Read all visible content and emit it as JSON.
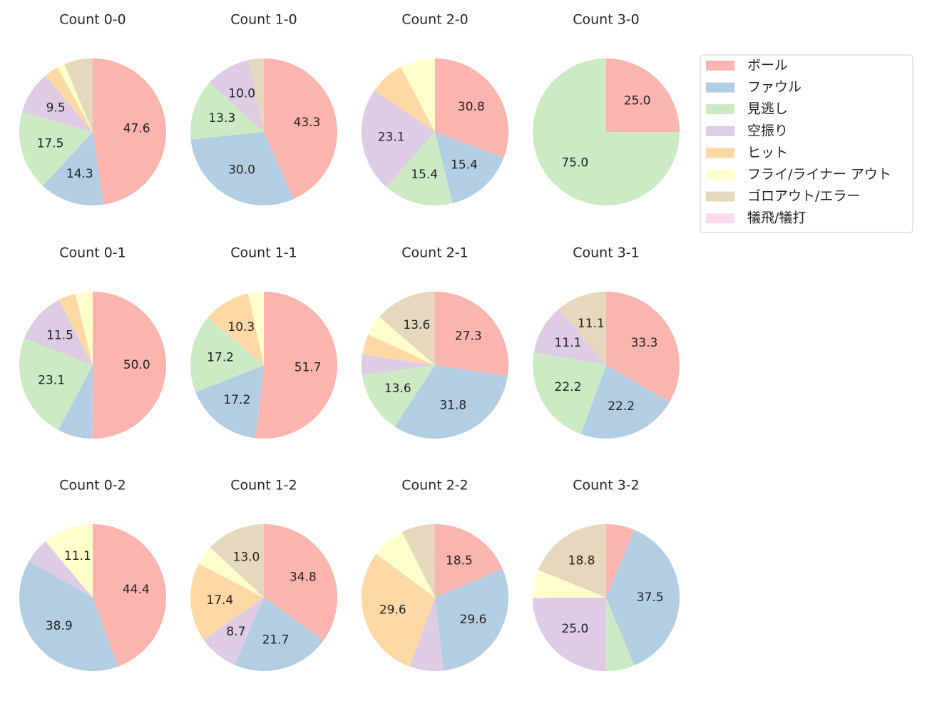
{
  "chart_data": [
    {
      "type": "pie",
      "title": "Count 0-0",
      "values": [
        47.6,
        14.3,
        17.5,
        9.5,
        3.2,
        1.6,
        6.3,
        0
      ],
      "value_labels": [
        "47.6",
        "14.3",
        "17.5",
        "9.5",
        null,
        null,
        null,
        null
      ]
    },
    {
      "type": "pie",
      "title": "Count 1-0",
      "values": [
        43.3,
        30.0,
        13.3,
        10.0,
        0,
        0,
        3.3,
        0
      ],
      "value_labels": [
        "43.3",
        "30.0",
        "13.3",
        "10.0",
        null,
        null,
        null,
        null
      ]
    },
    {
      "type": "pie",
      "title": "Count 2-0",
      "values": [
        30.8,
        15.4,
        15.4,
        23.1,
        7.7,
        7.7,
        0,
        0
      ],
      "value_labels": [
        "30.8",
        "15.4",
        "15.4",
        "23.1",
        null,
        null,
        null,
        null
      ]
    },
    {
      "type": "pie",
      "title": "Count 3-0",
      "values": [
        25.0,
        0,
        75.0,
        0,
        0,
        0,
        0,
        0
      ],
      "value_labels": [
        "25.0",
        null,
        "75.0",
        null,
        null,
        null,
        null,
        null
      ]
    },
    {
      "type": "pie",
      "title": "Count 0-1",
      "values": [
        50.0,
        7.7,
        23.1,
        11.5,
        3.8,
        3.8,
        0,
        0
      ],
      "value_labels": [
        "50.0",
        null,
        "23.1",
        "11.5",
        null,
        null,
        null,
        null
      ]
    },
    {
      "type": "pie",
      "title": "Count 1-1",
      "values": [
        51.7,
        17.2,
        17.2,
        0,
        10.3,
        3.4,
        0,
        0
      ],
      "value_labels": [
        "51.7",
        "17.2",
        "17.2",
        null,
        "10.3",
        null,
        null,
        null
      ]
    },
    {
      "type": "pie",
      "title": "Count 2-1",
      "values": [
        27.3,
        31.8,
        13.6,
        4.5,
        4.5,
        4.5,
        13.6,
        0
      ],
      "value_labels": [
        "27.3",
        "31.8",
        "13.6",
        null,
        null,
        null,
        "13.6",
        null
      ]
    },
    {
      "type": "pie",
      "title": "Count 3-1",
      "values": [
        33.3,
        22.2,
        22.2,
        11.1,
        0,
        0,
        11.1,
        0
      ],
      "value_labels": [
        "33.3",
        "22.2",
        "22.2",
        "11.1",
        null,
        null,
        "11.1",
        null
      ]
    },
    {
      "type": "pie",
      "title": "Count 0-2",
      "values": [
        44.4,
        38.9,
        0,
        5.6,
        0,
        11.1,
        0,
        0
      ],
      "value_labels": [
        "44.4",
        "38.9",
        null,
        null,
        null,
        "11.1",
        null,
        null
      ]
    },
    {
      "type": "pie",
      "title": "Count 1-2",
      "values": [
        34.8,
        21.7,
        0,
        8.7,
        17.4,
        4.3,
        13.0,
        0
      ],
      "value_labels": [
        "34.8",
        "21.7",
        null,
        "8.7",
        "17.4",
        null,
        "13.0",
        null
      ]
    },
    {
      "type": "pie",
      "title": "Count 2-2",
      "values": [
        18.5,
        29.6,
        0,
        7.4,
        29.6,
        7.4,
        7.4,
        0
      ],
      "value_labels": [
        "18.5",
        "29.6",
        null,
        null,
        "29.6",
        null,
        null,
        null
      ]
    },
    {
      "type": "pie",
      "title": "Count 3-2",
      "values": [
        6.2,
        37.5,
        6.2,
        25.0,
        0,
        6.2,
        18.8,
        0
      ],
      "value_labels": [
        null,
        "37.5",
        null,
        "25.0",
        null,
        null,
        "18.8",
        null
      ]
    }
  ],
  "legend": {
    "labels": [
      "ボール",
      "ファウル",
      "見逃し",
      "空振り",
      "ヒット",
      "フライ/ライナー アウト",
      "ゴロアウト/エラー",
      "犠飛/犠打"
    ],
    "colors": [
      "#fbb4ae",
      "#b3cde3",
      "#ccebc5",
      "#decbe4",
      "#fed9a6",
      "#ffffcc",
      "#e5d8bd",
      "#fddaec"
    ]
  }
}
